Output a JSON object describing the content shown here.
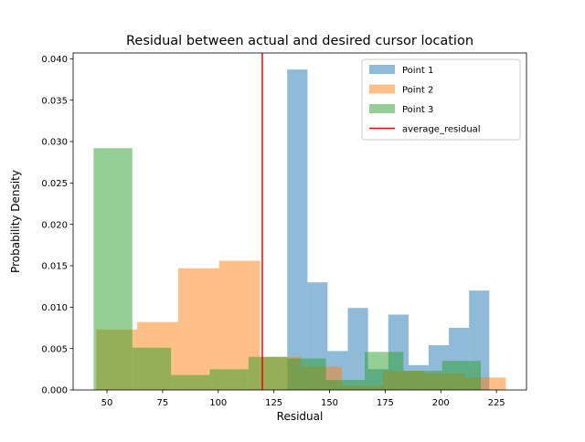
{
  "chart_data": {
    "type": "histogram",
    "title": "Residual between actual and desired cursor location",
    "xlabel": "Residual",
    "ylabel": "Probability Density",
    "xlim": [
      34.8,
      238.5
    ],
    "ylim": [
      0,
      0.0407
    ],
    "xticks": [
      50,
      75,
      100,
      125,
      150,
      175,
      200,
      225
    ],
    "xtick_labels": [
      "50",
      "75",
      "100",
      "125",
      "150",
      "175",
      "200",
      "225"
    ],
    "yticks": [
      0,
      0.005,
      0.01,
      0.015,
      0.02,
      0.025,
      0.03,
      0.035,
      0.04
    ],
    "ytick_labels": [
      "0.000",
      "0.005",
      "0.010",
      "0.015",
      "0.020",
      "0.025",
      "0.030",
      "0.035",
      "0.040"
    ],
    "grid": false,
    "legend_position": "upper right",
    "series": [
      {
        "name": "Point 1",
        "color": "#1f77b4",
        "alpha": 0.5,
        "bin_edges": [
          131.0,
          140.1,
          149.1,
          158.2,
          167.3,
          176.4,
          185.5,
          194.5,
          203.6,
          212.7,
          221.8
        ],
        "density": [
          0.0387,
          0.013,
          0.0047,
          0.0099,
          0.0025,
          0.0091,
          0.003,
          0.0054,
          0.0075,
          0.012
        ]
      },
      {
        "name": "Point 2",
        "color": "#ff7f0e",
        "alpha": 0.5,
        "bin_edges": [
          45.2,
          63.6,
          82.0,
          100.4,
          118.8,
          137.2,
          155.6,
          174.0,
          192.4,
          210.8,
          229.2
        ],
        "density": [
          0.0073,
          0.0082,
          0.0147,
          0.0156,
          0.004,
          0.0028,
          0.0005,
          0.0023,
          0.002,
          0.0015
        ]
      },
      {
        "name": "Point 3",
        "color": "#2ca02c",
        "alpha": 0.5,
        "bin_edges": [
          44.0,
          61.4,
          78.8,
          96.2,
          113.6,
          131.0,
          148.4,
          165.8,
          183.2,
          200.6,
          218.0
        ],
        "density": [
          0.0292,
          0.0051,
          0.0018,
          0.0025,
          0.004,
          0.0038,
          0.0012,
          0.0046,
          0.0023,
          0.0035
        ]
      }
    ],
    "reference_lines": [
      {
        "name": "average_residual",
        "x": 119.8,
        "color": "#ff0000"
      }
    ]
  }
}
